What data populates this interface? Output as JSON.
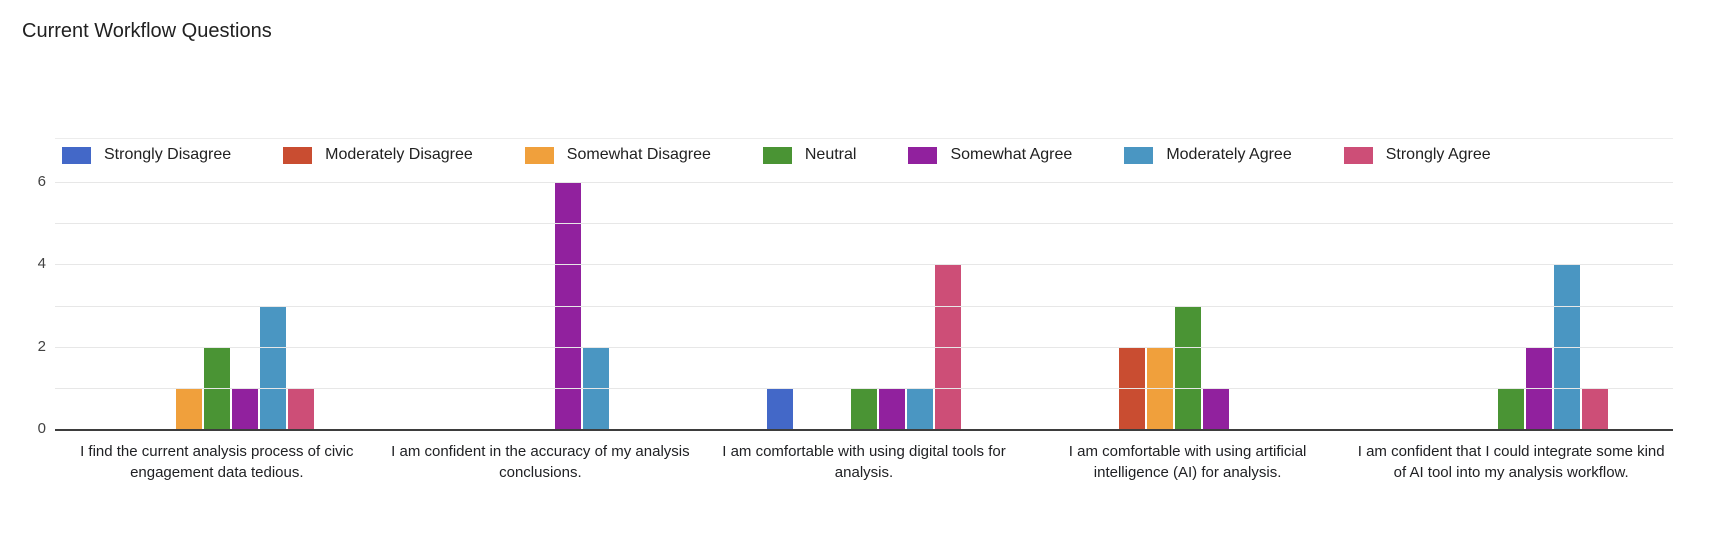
{
  "chart_data": {
    "type": "bar",
    "title": "Current Workflow Questions",
    "categories": [
      "I find the current analysis process of civic engagement data tedious.",
      "I am confident in the accuracy of my analysis conclusions.",
      "I am comfortable with using digital tools for analysis.",
      "I am comfortable with using artificial intelligence (AI) for analysis.",
      "I am confident that I could integrate some kind of AI tool into my analysis workflow."
    ],
    "series": [
      {
        "name": "Strongly Disagree",
        "color": "#4368c8",
        "values": [
          0,
          0,
          1,
          0,
          0
        ]
      },
      {
        "name": "Moderately Disagree",
        "color": "#c94d31",
        "values": [
          0,
          0,
          0,
          2,
          0
        ]
      },
      {
        "name": "Somewhat Disagree",
        "color": "#f0a03c",
        "values": [
          1,
          0,
          0,
          2,
          0
        ]
      },
      {
        "name": "Neutral",
        "color": "#4a9434",
        "values": [
          2,
          0,
          1,
          3,
          1
        ]
      },
      {
        "name": "Somewhat Agree",
        "color": "#91219e",
        "values": [
          1,
          6,
          1,
          1,
          2
        ]
      },
      {
        "name": "Moderately Agree",
        "color": "#4a96c2",
        "values": [
          3,
          2,
          1,
          0,
          4
        ]
      },
      {
        "name": "Strongly Agree",
        "color": "#cd4e77",
        "values": [
          1,
          0,
          4,
          0,
          1
        ]
      }
    ],
    "xlabel": "",
    "ylabel": "",
    "ylim": [
      0,
      6
    ],
    "yticks": [
      0,
      2,
      4,
      6
    ],
    "minor_gridlines": [
      1,
      3,
      5
    ],
    "grid": true,
    "legend_position": "top"
  }
}
